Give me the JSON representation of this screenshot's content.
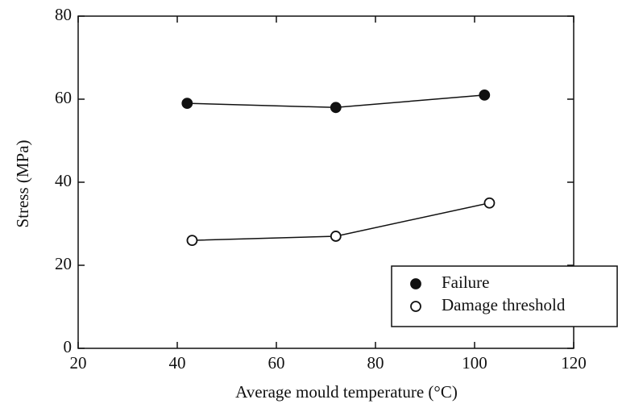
{
  "chart_data": {
    "type": "line",
    "xlabel": "Average mould temperature  (°C)",
    "ylabel": "Stress  (MPa)",
    "xlim": [
      20,
      120
    ],
    "xticks": [
      20,
      40,
      60,
      80,
      100,
      120
    ],
    "ylim": [
      0,
      80
    ],
    "yticks": [
      0,
      20,
      40,
      60,
      80
    ],
    "legend": "lower right",
    "series": [
      {
        "name": "Failure",
        "color": "#111111",
        "fill": "#111111",
        "x": [
          42,
          72,
          102
        ],
        "values": [
          59,
          58,
          61
        ]
      },
      {
        "name": "Damage threshold",
        "color": "#111111",
        "fill": "#ffffff",
        "x": [
          43,
          72,
          103
        ],
        "values": [
          26,
          27,
          35
        ]
      }
    ]
  }
}
